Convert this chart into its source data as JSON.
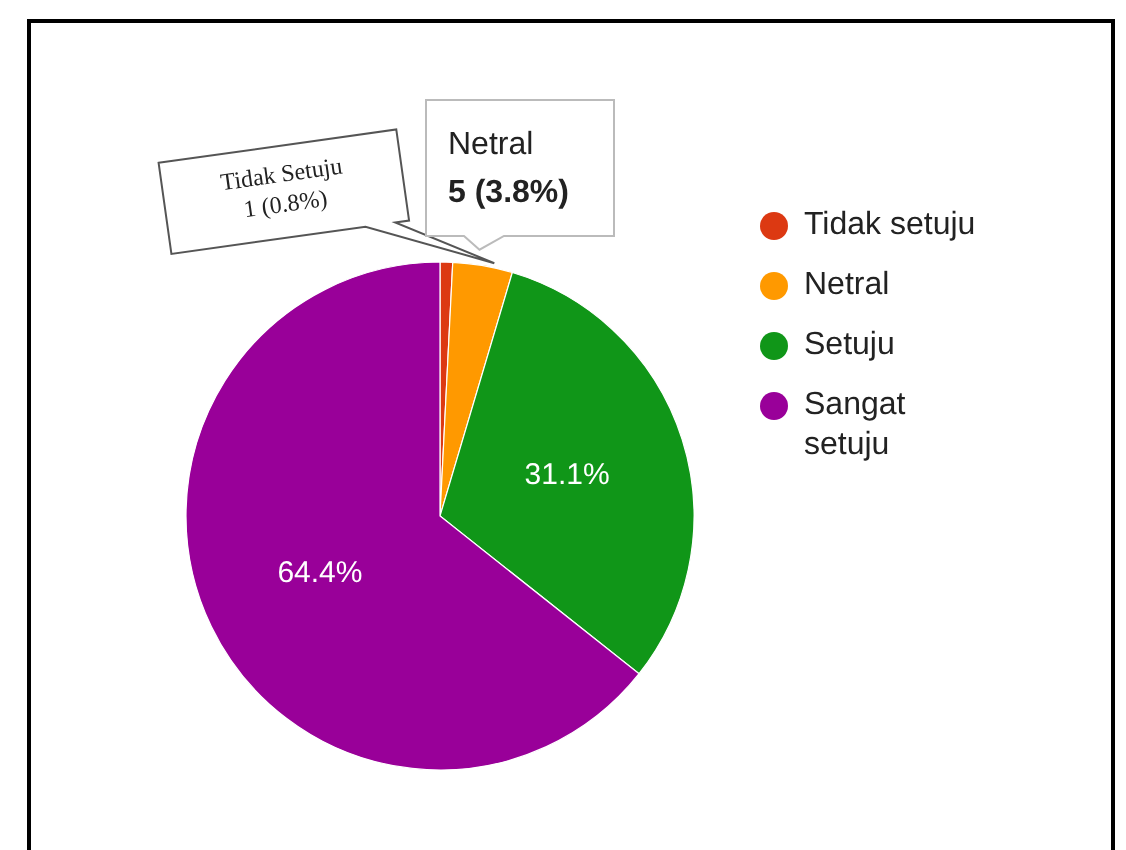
{
  "chart_data": {
    "type": "pie",
    "categories": [
      "Tidak setuju",
      "Netral",
      "Setuju",
      "Sangat setuju"
    ],
    "values": [
      0.8,
      3.8,
      31.1,
      64.4
    ],
    "colors": [
      "#dc3912",
      "#ff9900",
      "#109618",
      "#990099"
    ],
    "value_labels": [
      null,
      null,
      "31.1%",
      "64.4%"
    ],
    "annotations": [
      "Tidak Setuju\n1 (0.8%)",
      "Netral\n5 (3.8%)"
    ],
    "legend": "right"
  }
}
